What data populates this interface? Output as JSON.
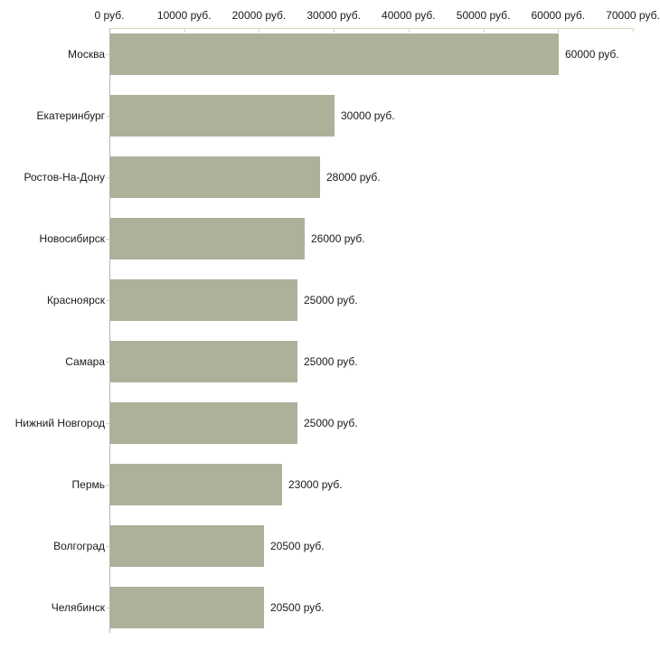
{
  "chart_data": {
    "type": "bar",
    "orientation": "horizontal",
    "categories": [
      "Москва",
      "Екатеринбург",
      "Ростов-На-Дону",
      "Новосибирск",
      "Красноярск",
      "Самара",
      "Нижний Новгород",
      "Пермь",
      "Волгоград",
      "Челябинск"
    ],
    "values": [
      60000,
      30000,
      28000,
      26000,
      25000,
      25000,
      25000,
      23000,
      20500,
      20500
    ],
    "value_labels": [
      "60000 руб.",
      "30000 руб.",
      "28000 руб.",
      "26000 руб.",
      "25000 руб.",
      "25000 руб.",
      "25000 руб.",
      "23000 руб.",
      "20500 руб.",
      "20500 руб."
    ],
    "x_axis": {
      "position": "top",
      "xlim": [
        0,
        70000
      ],
      "ticks": [
        0,
        10000,
        20000,
        30000,
        40000,
        50000,
        60000,
        70000
      ],
      "tick_labels": [
        "0 руб.",
        "10000 руб.",
        "20000 руб.",
        "30000 руб.",
        "40000 руб.",
        "50000 руб.",
        "60000 руб.",
        "70000 руб."
      ]
    },
    "grid": false,
    "legend": false,
    "colors": {
      "bar": "#acb199",
      "axis_line": "#d8d9ba",
      "category_axis_line": "#b5b5b5",
      "text": "#1a1a1a",
      "background": "#ffffff"
    }
  }
}
